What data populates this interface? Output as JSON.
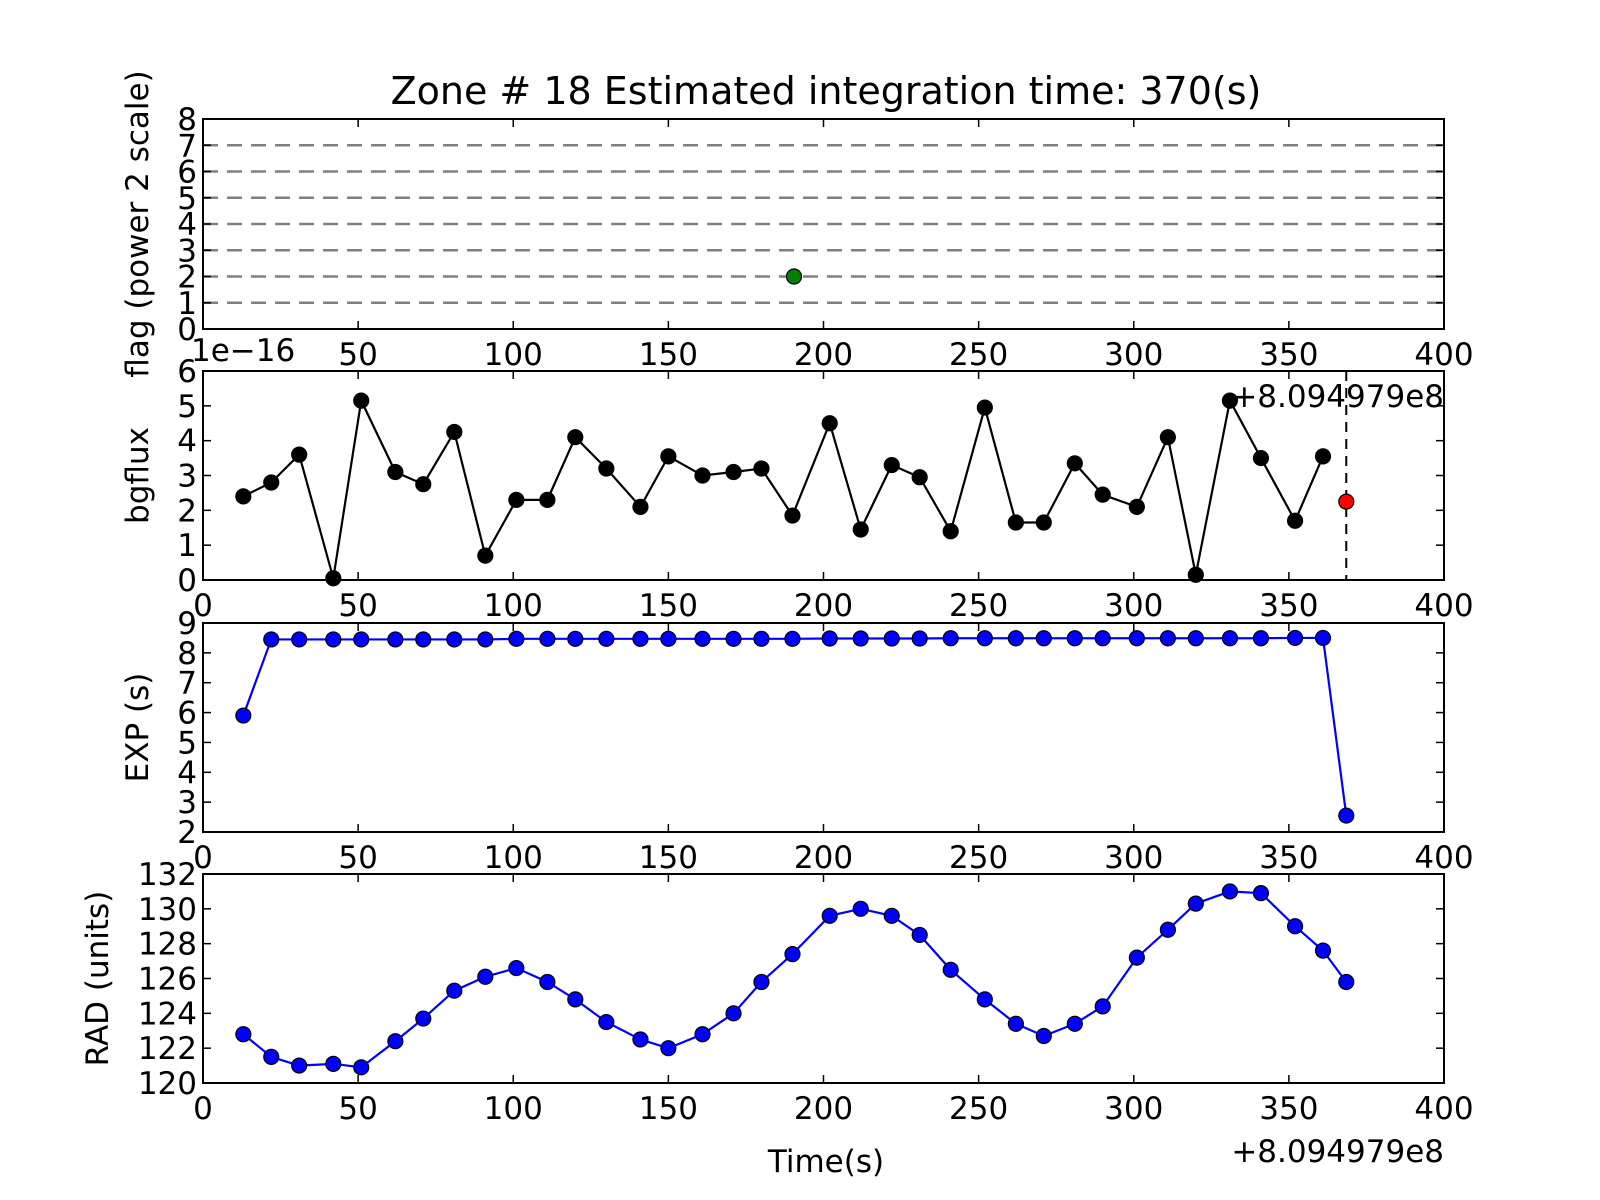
{
  "title": "Zone # 18 Estimated integration time: 370(s)",
  "xlabel": "Time(s)",
  "x_offset_text": "+8.094979e8",
  "colors": {
    "black": "#000000",
    "blue": "#0000ff",
    "green": "#008000",
    "red": "#ff0000",
    "grid": "#808080",
    "line_blue": "#0000ff"
  },
  "chart_data": [
    {
      "type": "scatter",
      "ylabel": "flag (power 2 scale)",
      "xlim": [
        0,
        400
      ],
      "ylim": [
        0,
        8
      ],
      "xticks": [
        50,
        100,
        150,
        200,
        250,
        300,
        350,
        400
      ],
      "yticks": [
        0,
        1,
        2,
        3,
        4,
        5,
        6,
        7,
        8
      ],
      "hlines": [
        1,
        2,
        3,
        4,
        5,
        6,
        7
      ],
      "points": [
        {
          "x": 190.5,
          "y": 2
        }
      ]
    },
    {
      "type": "line",
      "ylabel": "bgflux",
      "y_scale_text": "1e−16",
      "x_offset_text": "+8.094979e8",
      "xlim": [
        0,
        400
      ],
      "ylim": [
        0,
        6
      ],
      "xticks": [
        0,
        50,
        100,
        150,
        200,
        250,
        300,
        350,
        400
      ],
      "yticks": [
        0,
        1,
        2,
        3,
        4,
        5,
        6
      ],
      "vline": 368.5,
      "x": [
        13,
        22,
        31,
        42,
        51,
        62,
        71,
        81,
        91,
        101,
        111,
        120,
        130,
        141,
        150,
        161,
        171,
        180,
        190,
        202,
        212,
        222,
        231,
        241,
        252,
        262,
        271,
        281,
        290,
        301,
        311,
        320,
        331,
        341,
        352,
        361
      ],
      "y": [
        2.4,
        2.8,
        3.6,
        0.05,
        5.15,
        3.1,
        2.75,
        4.25,
        0.7,
        2.3,
        2.3,
        4.1,
        3.2,
        2.1,
        3.55,
        3.0,
        3.1,
        3.2,
        1.85,
        4.5,
        1.45,
        3.3,
        2.95,
        1.4,
        4.95,
        1.65,
        1.65,
        3.35,
        2.45,
        2.1,
        4.1,
        0.15,
        5.15,
        3.5,
        1.7,
        3.55
      ],
      "highlight": {
        "x": 368.5,
        "y": 2.25
      }
    },
    {
      "type": "line",
      "ylabel": "EXP (s)",
      "xlim": [
        0,
        400
      ],
      "ylim": [
        2,
        9
      ],
      "xticks": [
        0,
        50,
        100,
        150,
        200,
        250,
        300,
        350,
        400
      ],
      "yticks": [
        2,
        3,
        4,
        5,
        6,
        7,
        8,
        9
      ],
      "x": [
        13,
        22,
        31,
        42,
        51,
        62,
        71,
        81,
        91,
        101,
        111,
        120,
        130,
        141,
        150,
        161,
        171,
        180,
        190,
        202,
        212,
        222,
        231,
        241,
        252,
        262,
        271,
        281,
        290,
        301,
        311,
        320,
        331,
        341,
        352,
        361,
        368.5
      ],
      "y": [
        5.9,
        8.45,
        8.45,
        8.45,
        8.45,
        8.45,
        8.45,
        8.45,
        8.45,
        8.47,
        8.47,
        8.47,
        8.47,
        8.47,
        8.47,
        8.47,
        8.47,
        8.47,
        8.47,
        8.48,
        8.48,
        8.48,
        8.48,
        8.49,
        8.49,
        8.49,
        8.49,
        8.49,
        8.49,
        8.49,
        8.49,
        8.49,
        8.49,
        8.49,
        8.5,
        8.5,
        2.55
      ]
    },
    {
      "type": "line",
      "ylabel": "RAD (units)",
      "xlim": [
        0,
        400
      ],
      "ylim": [
        120,
        132
      ],
      "xticks": [
        0,
        50,
        100,
        150,
        200,
        250,
        300,
        350,
        400
      ],
      "yticks": [
        120,
        122,
        124,
        126,
        128,
        130,
        132
      ],
      "x": [
        13,
        22,
        31,
        42,
        51,
        62,
        71,
        81,
        91,
        101,
        111,
        120,
        130,
        141,
        150,
        161,
        171,
        180,
        190,
        202,
        212,
        222,
        231,
        241,
        252,
        262,
        271,
        281,
        290,
        301,
        311,
        320,
        331,
        341,
        352,
        361,
        368.5
      ],
      "y": [
        122.8,
        121.5,
        121.0,
        121.1,
        120.9,
        122.4,
        123.7,
        125.3,
        126.1,
        126.6,
        125.8,
        124.8,
        123.5,
        122.5,
        122.0,
        122.8,
        124.0,
        125.8,
        127.4,
        129.6,
        130.0,
        129.6,
        128.5,
        126.5,
        124.8,
        123.4,
        122.7,
        123.4,
        124.4,
        127.2,
        128.8,
        130.3,
        131.0,
        130.9,
        129.0,
        127.6,
        125.8
      ]
    }
  ]
}
